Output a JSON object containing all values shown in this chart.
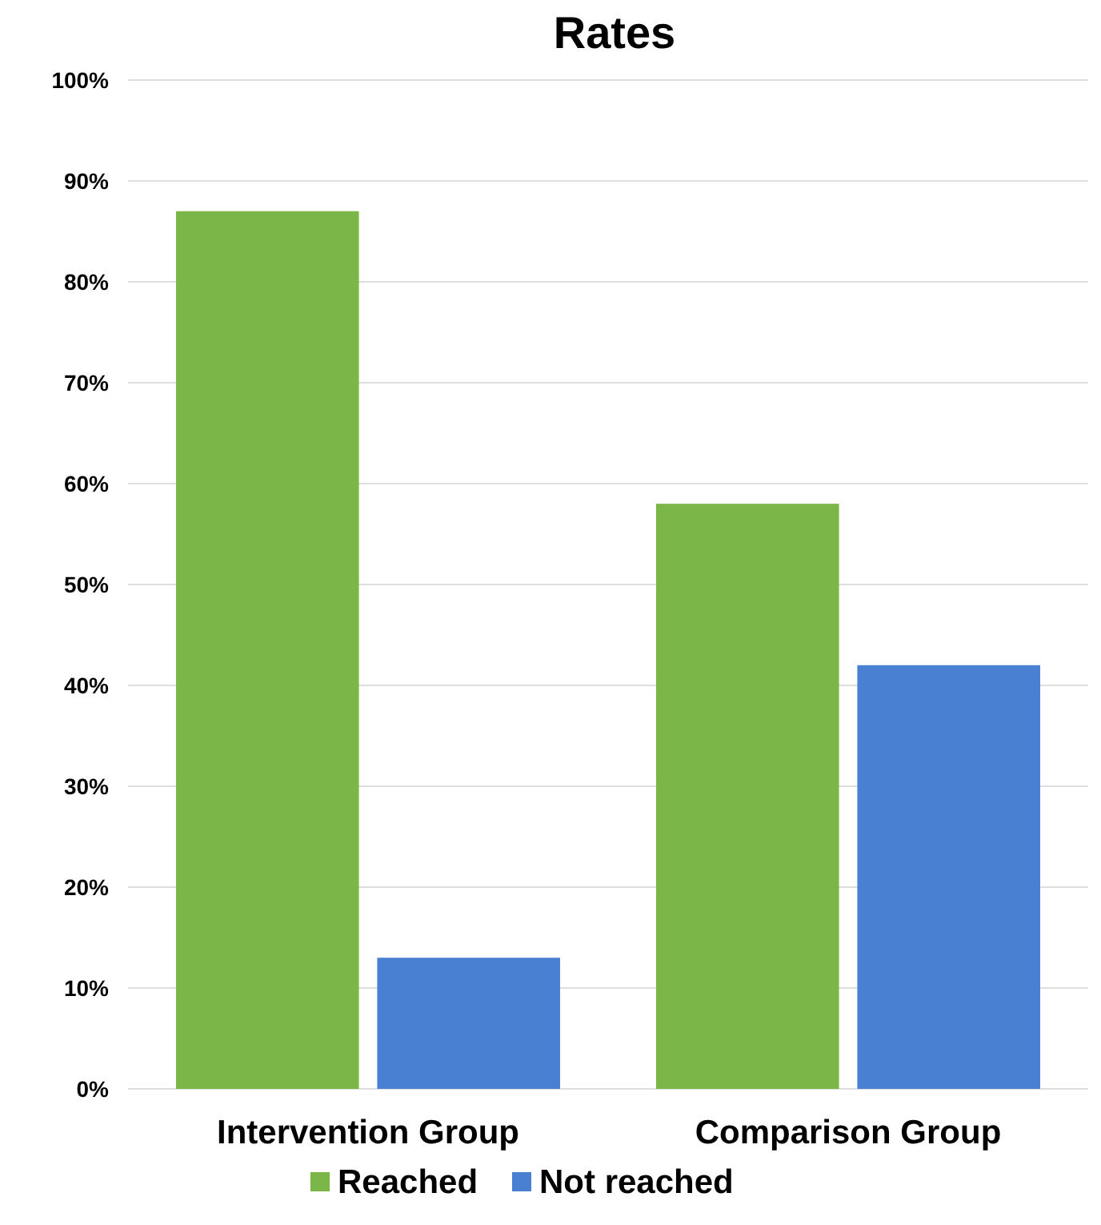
{
  "chart_data": {
    "type": "bar",
    "title": "Rates",
    "categories": [
      "Intervention Group",
      "Comparison Group"
    ],
    "series": [
      {
        "name": "Reached",
        "color": "#7ab648",
        "values": [
          87,
          58
        ]
      },
      {
        "name": "Not reached",
        "color": "#4a80d2",
        "values": [
          13,
          42
        ]
      }
    ],
    "ylim": [
      0,
      100
    ],
    "yticks": [
      {
        "value": 0,
        "label": "0%"
      },
      {
        "value": 10,
        "label": "10%"
      },
      {
        "value": 20,
        "label": "20%"
      },
      {
        "value": 30,
        "label": "30%"
      },
      {
        "value": 40,
        "label": "40%"
      },
      {
        "value": 50,
        "label": "50%"
      },
      {
        "value": 60,
        "label": "60%"
      },
      {
        "value": 70,
        "label": "70%"
      },
      {
        "value": 80,
        "label": "80%"
      },
      {
        "value": 90,
        "label": "90%"
      },
      {
        "value": 100,
        "label": "100%"
      }
    ],
    "grid": "y",
    "legend": "bottom"
  }
}
